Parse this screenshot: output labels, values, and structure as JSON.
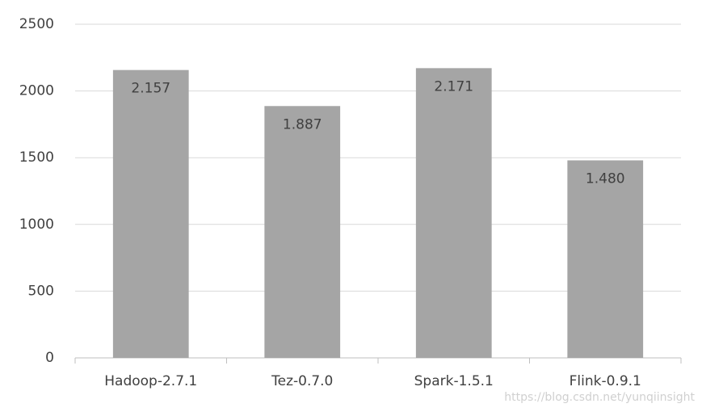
{
  "chart_data": {
    "type": "bar",
    "categories": [
      "Hadoop-2.7.1",
      "Tez-0.7.0",
      "Spark-1.5.1",
      "Flink-0.9.1"
    ],
    "values": [
      2157,
      1887,
      2171,
      1480
    ],
    "value_labels": [
      "2.157",
      "1.887",
      "2.171",
      "1.480"
    ],
    "color": "#a5a5a5",
    "ylim": [
      0,
      2500
    ],
    "yticks": [
      0,
      500,
      1000,
      1500,
      2000,
      2500
    ],
    "grid": true,
    "watermark": "https://blog.csdn.net/yunqiinsight"
  }
}
